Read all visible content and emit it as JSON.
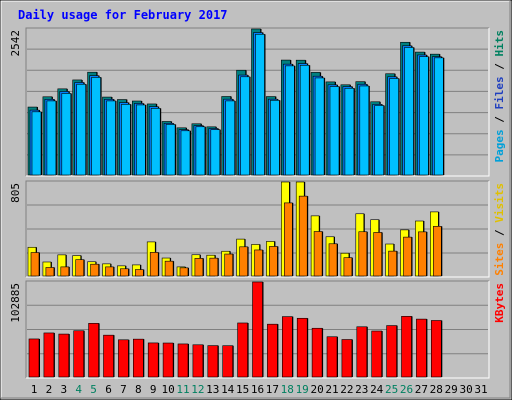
{
  "chart_data": [
    {
      "type": "bar",
      "title": "Daily usage for February 2017",
      "ymax_label": "2542",
      "ylim": [
        0,
        2542
      ],
      "side_labels": [
        {
          "text": "Pages",
          "color": "#00a0d8"
        },
        {
          "text": " / ",
          "color": "#000000"
        },
        {
          "text": "Files",
          "color": "#1f3fbf"
        },
        {
          "text": " / ",
          "color": "#000000"
        },
        {
          "text": "Hits",
          "color": "#008060"
        }
      ],
      "categories": [
        "1",
        "2",
        "3",
        "4",
        "5",
        "6",
        "7",
        "8",
        "9",
        "10",
        "11",
        "12",
        "13",
        "14",
        "15",
        "16",
        "17",
        "18",
        "19",
        "20",
        "21",
        "22",
        "23",
        "24",
        "25",
        "26",
        "27",
        "28",
        "29",
        "30",
        "31"
      ],
      "series": [
        {
          "name": "Hits",
          "color": "#008080",
          "values": [
            1183,
            1362,
            1500,
            1655,
            1790,
            1357,
            1314,
            1288,
            1237,
            932,
            822,
            892,
            839,
            1367,
            1824,
            2542,
            1366,
            2001,
            1999,
            1786,
            1621,
            1571,
            1625,
            1275,
            1763,
            2311,
            2140,
            2104,
            0,
            0,
            0
          ]
        },
        {
          "name": "Files",
          "color": "#0080ff",
          "values": [
            1130,
            1318,
            1454,
            1611,
            1730,
            1318,
            1260,
            1246,
            1190,
            900,
            790,
            860,
            810,
            1320,
            1740,
            2480,
            1320,
            1930,
            1940,
            1720,
            1570,
            1540,
            1580,
            1230,
            1710,
            2250,
            2090,
            2060,
            0,
            0,
            0
          ]
        },
        {
          "name": "Pages",
          "color": "#00c0ff",
          "values": [
            1100,
            1290,
            1420,
            1580,
            1700,
            1290,
            1230,
            1220,
            1160,
            880,
            770,
            840,
            790,
            1290,
            1710,
            2450,
            1300,
            1900,
            1910,
            1690,
            1540,
            1510,
            1550,
            1210,
            1680,
            2220,
            2060,
            2040,
            0,
            0,
            0
          ]
        }
      ]
    },
    {
      "type": "bar",
      "ymax_label": "805",
      "ylim": [
        0,
        805
      ],
      "side_labels": [
        {
          "text": "Sites",
          "color": "#ff8000"
        },
        {
          "text": " / ",
          "color": "#000000"
        },
        {
          "text": "Visits",
          "color": "#e0c000"
        }
      ],
      "categories": [
        "1",
        "2",
        "3",
        "4",
        "5",
        "6",
        "7",
        "8",
        "9",
        "10",
        "11",
        "12",
        "13",
        "14",
        "15",
        "16",
        "17",
        "18",
        "19",
        "20",
        "21",
        "22",
        "23",
        "24",
        "25",
        "26",
        "27",
        "28",
        "29",
        "30",
        "31"
      ],
      "series": [
        {
          "name": "Visits",
          "color": "#ffff00",
          "values": [
            246,
            120,
            181,
            175,
            122,
            104,
            87,
            95,
            292,
            154,
            78,
            182,
            178,
            212,
            316,
            270,
            296,
            805,
            805,
            515,
            336,
            195,
            533,
            482,
            274,
            395,
            471,
            549,
            0,
            0,
            0
          ]
        },
        {
          "name": "Sites",
          "color": "#ff8000",
          "values": [
            201,
            73,
            78,
            140,
            101,
            78,
            62,
            55,
            202,
            127,
            70,
            151,
            153,
            188,
            250,
            223,
            253,
            626,
            684,
            381,
            276,
            157,
            379,
            373,
            213,
            333,
            378,
            425,
            0,
            0,
            0
          ]
        }
      ]
    },
    {
      "type": "bar",
      "ymax_label": "102885",
      "ylim": [
        0,
        102885
      ],
      "side_labels": [
        {
          "text": "KBytes",
          "color": "#ff0000"
        }
      ],
      "categories": [
        "1",
        "2",
        "3",
        "4",
        "5",
        "6",
        "7",
        "8",
        "9",
        "10",
        "11",
        "12",
        "13",
        "14",
        "15",
        "16",
        "17",
        "18",
        "19",
        "20",
        "21",
        "22",
        "23",
        "24",
        "25",
        "26",
        "27",
        "28",
        "29",
        "30",
        "31"
      ],
      "series": [
        {
          "name": "KBytes",
          "color": "#ff0000",
          "values": [
            41200,
            47700,
            46500,
            50100,
            58100,
            45300,
            40300,
            41000,
            36900,
            36800,
            35800,
            34900,
            34000,
            33900,
            58500,
            102885,
            57200,
            65400,
            63600,
            52800,
            43600,
            40600,
            54400,
            49800,
            55700,
            65700,
            62700,
            61200,
            0,
            0,
            0
          ]
        }
      ]
    }
  ],
  "x_axis": {
    "labels": [
      "1",
      "2",
      "3",
      "4",
      "5",
      "6",
      "7",
      "8",
      "9",
      "10",
      "11",
      "12",
      "13",
      "14",
      "15",
      "16",
      "17",
      "18",
      "19",
      "20",
      "21",
      "22",
      "23",
      "24",
      "25",
      "26",
      "27",
      "28",
      "29",
      "30",
      "31"
    ],
    "weekend_days": [
      "4",
      "5",
      "11",
      "12",
      "18",
      "19",
      "25",
      "26"
    ],
    "weekday_color": "#000000",
    "weekend_color": "#008060"
  },
  "colors": {
    "background": "#c0c0c0",
    "panel": "#c0c0c0",
    "title": "#0000ff",
    "gridline": "#808080"
  }
}
